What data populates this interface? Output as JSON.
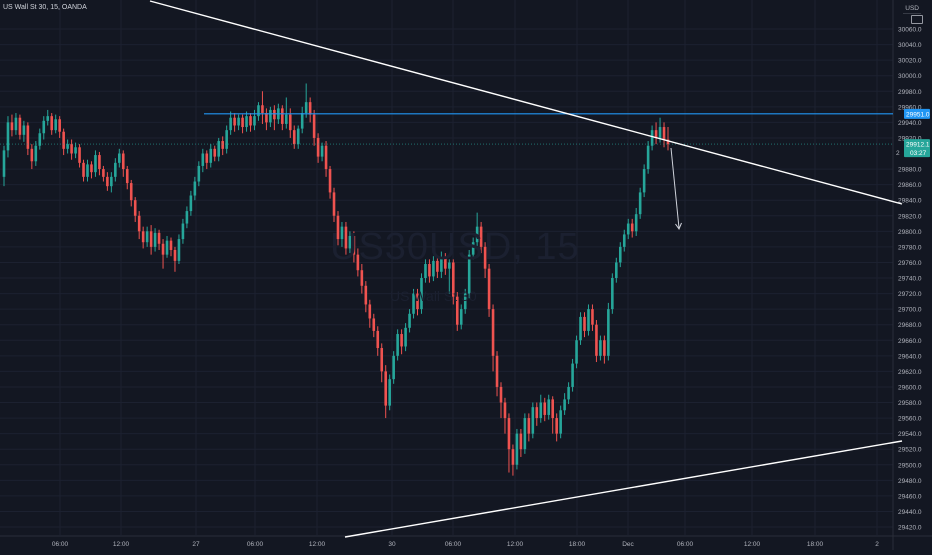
{
  "header": {
    "symbol_title": "US Wall St 30, 15, OANDA",
    "currency": "USD"
  },
  "watermark": {
    "symbol": "US30USD, 15",
    "name": "US Wall St 30"
  },
  "badges": {
    "level_value": "29951.0",
    "price_value": "29912.1",
    "countdown": "03:27",
    "partial_left": "2"
  },
  "colors": {
    "background": "#131722",
    "up": "#26a69a",
    "down": "#ef5350",
    "level_line": "#2196f3",
    "price_line": "#26a69a",
    "trend_line": "#ffffff"
  },
  "chart_data": {
    "type": "candlestick",
    "yaxis": {
      "ticks": [
        "30060.0",
        "30040.0",
        "30020.0",
        "30000.0",
        "29980.0",
        "29960.0",
        "29940.0",
        "29920.0",
        "29880.0",
        "29860.0",
        "29840.0",
        "29820.0",
        "29800.0",
        "29780.0",
        "29760.0",
        "29740.0",
        "29720.0",
        "29700.0",
        "29680.0",
        "29660.0",
        "29640.0",
        "29620.0",
        "29600.0",
        "29580.0",
        "29560.0",
        "29540.0",
        "29520.0",
        "29500.0",
        "29480.0",
        "29460.0",
        "29440.0",
        "29420.0"
      ]
    },
    "xaxis": {
      "ticks": [
        "06:00",
        "12:00",
        "27",
        "06:00",
        "12:00",
        "30",
        "06:00",
        "12:00",
        "18:00",
        "Dec",
        "06:00",
        "12:00",
        "18:00",
        "2"
      ]
    },
    "horizontal_levels": [
      29951.0,
      29912.1
    ],
    "candles": [
      [
        29870,
        29904,
        29858,
        29910
      ],
      [
        29904,
        29940,
        29895,
        29948
      ],
      [
        29940,
        29930,
        29922,
        29950
      ],
      [
        29930,
        29946,
        29924,
        29952
      ],
      [
        29946,
        29924,
        29918,
        29950
      ],
      [
        29924,
        29936,
        29915,
        29942
      ],
      [
        29936,
        29906,
        29898,
        29940
      ],
      [
        29906,
        29890,
        29880,
        29912
      ],
      [
        29890,
        29910,
        29884,
        29916
      ],
      [
        29910,
        29926,
        29905,
        29932
      ],
      [
        29926,
        29942,
        29918,
        29948
      ],
      [
        29942,
        29948,
        29936,
        29956
      ],
      [
        29948,
        29930,
        29924,
        29952
      ],
      [
        29930,
        29944,
        29926,
        29950
      ],
      [
        29944,
        29928,
        29920,
        29948
      ],
      [
        29928,
        29906,
        29898,
        29932
      ],
      [
        29906,
        29912,
        29900,
        29918
      ],
      [
        29912,
        29900,
        29892,
        29918
      ],
      [
        29900,
        29908,
        29894,
        29914
      ],
      [
        29908,
        29888,
        29882,
        29912
      ],
      [
        29888,
        29870,
        29864,
        29892
      ],
      [
        29870,
        29886,
        29864,
        29892
      ],
      [
        29886,
        29876,
        29868,
        29890
      ],
      [
        29876,
        29898,
        29870,
        29904
      ],
      [
        29898,
        29880,
        29872,
        29902
      ],
      [
        29880,
        29870,
        29864,
        29884
      ],
      [
        29870,
        29858,
        29852,
        29876
      ],
      [
        29858,
        29870,
        29850,
        29876
      ],
      [
        29870,
        29888,
        29864,
        29894
      ],
      [
        29888,
        29900,
        29882,
        29906
      ],
      [
        29900,
        29880,
        29870,
        29904
      ],
      [
        29880,
        29862,
        29854,
        29884
      ],
      [
        29862,
        29840,
        29832,
        29866
      ],
      [
        29840,
        29820,
        29812,
        29844
      ],
      [
        29820,
        29800,
        29790,
        29826
      ],
      [
        29800,
        29786,
        29778,
        29806
      ],
      [
        29786,
        29800,
        29780,
        29806
      ],
      [
        29800,
        29780,
        29770,
        29808
      ],
      [
        29780,
        29798,
        29774,
        29804
      ],
      [
        29798,
        29784,
        29776,
        29802
      ],
      [
        29784,
        29770,
        29752,
        29790
      ],
      [
        29770,
        29788,
        29766,
        29794
      ],
      [
        29788,
        29776,
        29768,
        29792
      ],
      [
        29776,
        29762,
        29748,
        29780
      ],
      [
        29762,
        29790,
        29758,
        29796
      ],
      [
        29790,
        29810,
        29784,
        29816
      ],
      [
        29810,
        29826,
        29804,
        29832
      ],
      [
        29826,
        29846,
        29820,
        29852
      ],
      [
        29846,
        29864,
        29840,
        29870
      ],
      [
        29864,
        29884,
        29858,
        29890
      ],
      [
        29884,
        29900,
        29876,
        29906
      ],
      [
        29900,
        29888,
        29880,
        29904
      ],
      [
        29888,
        29906,
        29882,
        29912
      ],
      [
        29906,
        29896,
        29890,
        29910
      ],
      [
        29896,
        29916,
        29890,
        29920
      ],
      [
        29916,
        29906,
        29898,
        29922
      ],
      [
        29906,
        29930,
        29900,
        29936
      ],
      [
        29930,
        29946,
        29924,
        29954
      ],
      [
        29946,
        29936,
        29928,
        29952
      ],
      [
        29936,
        29946,
        29930,
        29950
      ],
      [
        29946,
        29934,
        29926,
        29950
      ],
      [
        29934,
        29948,
        29928,
        29954
      ],
      [
        29948,
        29936,
        29928,
        29952
      ],
      [
        29936,
        29948,
        29930,
        29956
      ],
      [
        29948,
        29962,
        29942,
        29966
      ],
      [
        29962,
        29952,
        29938,
        29980
      ],
      [
        29952,
        29940,
        29930,
        29958
      ],
      [
        29940,
        29956,
        29934,
        29960
      ],
      [
        29956,
        29944,
        29930,
        29962
      ],
      [
        29944,
        29958,
        29938,
        29964
      ],
      [
        29958,
        29938,
        29930,
        29962
      ],
      [
        29938,
        29950,
        29932,
        29972
      ],
      [
        29950,
        29930,
        29920,
        29958
      ],
      [
        29930,
        29912,
        29906,
        29936
      ],
      [
        29912,
        29932,
        29906,
        29936
      ],
      [
        29932,
        29952,
        29926,
        29960
      ],
      [
        29952,
        29966,
        29946,
        29990
      ],
      [
        29966,
        29950,
        29940,
        29972
      ],
      [
        29950,
        29920,
        29910,
        29956
      ],
      [
        29920,
        29896,
        29888,
        29926
      ],
      [
        29896,
        29910,
        29890,
        29914
      ],
      [
        29910,
        29880,
        29870,
        29916
      ],
      [
        29880,
        29850,
        29842,
        29884
      ],
      [
        29850,
        29820,
        29812,
        29856
      ],
      [
        29820,
        29790,
        29782,
        29826
      ],
      [
        29790,
        29806,
        29780,
        29812
      ],
      [
        29806,
        29778,
        29770,
        29812
      ],
      [
        29778,
        29794,
        29772,
        29800
      ],
      [
        29794,
        29770,
        29760,
        29800
      ],
      [
        29770,
        29750,
        29742,
        29778
      ],
      [
        29750,
        29730,
        29720,
        29758
      ],
      [
        29730,
        29706,
        29696,
        29736
      ],
      [
        29706,
        29688,
        29676,
        29712
      ],
      [
        29688,
        29672,
        29664,
        29694
      ],
      [
        29672,
        29650,
        29640,
        29678
      ],
      [
        29650,
        29620,
        29606,
        29656
      ],
      [
        29620,
        29576,
        29560,
        29628
      ],
      [
        29576,
        29610,
        29570,
        29616
      ],
      [
        29610,
        29640,
        29604,
        29646
      ],
      [
        29640,
        29668,
        29634,
        29674
      ],
      [
        29668,
        29652,
        29642,
        29674
      ],
      [
        29652,
        29676,
        29646,
        29682
      ],
      [
        29676,
        29694,
        29670,
        29700
      ],
      [
        29694,
        29720,
        29688,
        29726
      ],
      [
        29720,
        29700,
        29692,
        29726
      ],
      [
        29700,
        29740,
        29694,
        29746
      ],
      [
        29740,
        29758,
        29734,
        29764
      ],
      [
        29758,
        29742,
        29734,
        29764
      ],
      [
        29742,
        29762,
        29736,
        29768
      ],
      [
        29762,
        29748,
        29740,
        29768
      ],
      [
        29748,
        29766,
        29740,
        29774
      ],
      [
        29766,
        29752,
        29744,
        29772
      ],
      [
        29752,
        29760,
        29720,
        29764
      ],
      [
        29760,
        29716,
        29706,
        29764
      ],
      [
        29716,
        29680,
        29672,
        29722
      ],
      [
        29680,
        29700,
        29674,
        29706
      ],
      [
        29700,
        29720,
        29694,
        29726
      ],
      [
        29720,
        29770,
        29714,
        29776
      ],
      [
        29770,
        29786,
        29764,
        29792
      ],
      [
        29786,
        29806,
        29780,
        29824
      ],
      [
        29806,
        29780,
        29772,
        29812
      ],
      [
        29780,
        29752,
        29740,
        29786
      ],
      [
        29752,
        29700,
        29690,
        29758
      ],
      [
        29700,
        29640,
        29620,
        29706
      ],
      [
        29640,
        29600,
        29588,
        29646
      ],
      [
        29600,
        29580,
        29560,
        29606
      ],
      [
        29580,
        29560,
        29540,
        29586
      ],
      [
        29560,
        29520,
        29490,
        29566
      ],
      [
        29520,
        29500,
        29486,
        29526
      ],
      [
        29500,
        29540,
        29494,
        29546
      ],
      [
        29540,
        29520,
        29510,
        29546
      ],
      [
        29520,
        29560,
        29514,
        29566
      ],
      [
        29560,
        29540,
        29530,
        29566
      ],
      [
        29540,
        29574,
        29534,
        29580
      ],
      [
        29574,
        29560,
        29550,
        29580
      ],
      [
        29560,
        29580,
        29554,
        29590
      ],
      [
        29580,
        29564,
        29556,
        29586
      ],
      [
        29564,
        29584,
        29558,
        29590
      ],
      [
        29584,
        29560,
        29540,
        29588
      ],
      [
        29560,
        29540,
        29530,
        29566
      ],
      [
        29540,
        29570,
        29534,
        29576
      ],
      [
        29570,
        29584,
        29564,
        29592
      ],
      [
        29584,
        29600,
        29578,
        29606
      ],
      [
        29600,
        29630,
        29594,
        29636
      ],
      [
        29630,
        29660,
        29624,
        29666
      ],
      [
        29660,
        29690,
        29654,
        29696
      ],
      [
        29690,
        29672,
        29664,
        29696
      ],
      [
        29672,
        29700,
        29666,
        29706
      ],
      [
        29700,
        29680,
        29672,
        29706
      ],
      [
        29680,
        29640,
        29632,
        29686
      ],
      [
        29640,
        29660,
        29634,
        29666
      ],
      [
        29660,
        29640,
        29630,
        29666
      ],
      [
        29640,
        29700,
        29634,
        29708
      ],
      [
        29700,
        29740,
        29694,
        29746
      ],
      [
        29740,
        29760,
        29734,
        29766
      ],
      [
        29760,
        29780,
        29754,
        29786
      ],
      [
        29780,
        29796,
        29774,
        29802
      ],
      [
        29796,
        29810,
        29790,
        29816
      ],
      [
        29810,
        29800,
        29792,
        29816
      ],
      [
        29800,
        29822,
        29794,
        29830
      ],
      [
        29822,
        29850,
        29816,
        29856
      ],
      [
        29850,
        29880,
        29844,
        29886
      ],
      [
        29880,
        29910,
        29874,
        29916
      ],
      [
        29910,
        29930,
        29904,
        29936
      ],
      [
        29930,
        29920,
        29912,
        29940
      ],
      [
        29920,
        29934,
        29914,
        29946
      ],
      [
        29934,
        29918,
        29908,
        29940
      ],
      [
        29918,
        29912,
        29904,
        29934
      ]
    ]
  }
}
